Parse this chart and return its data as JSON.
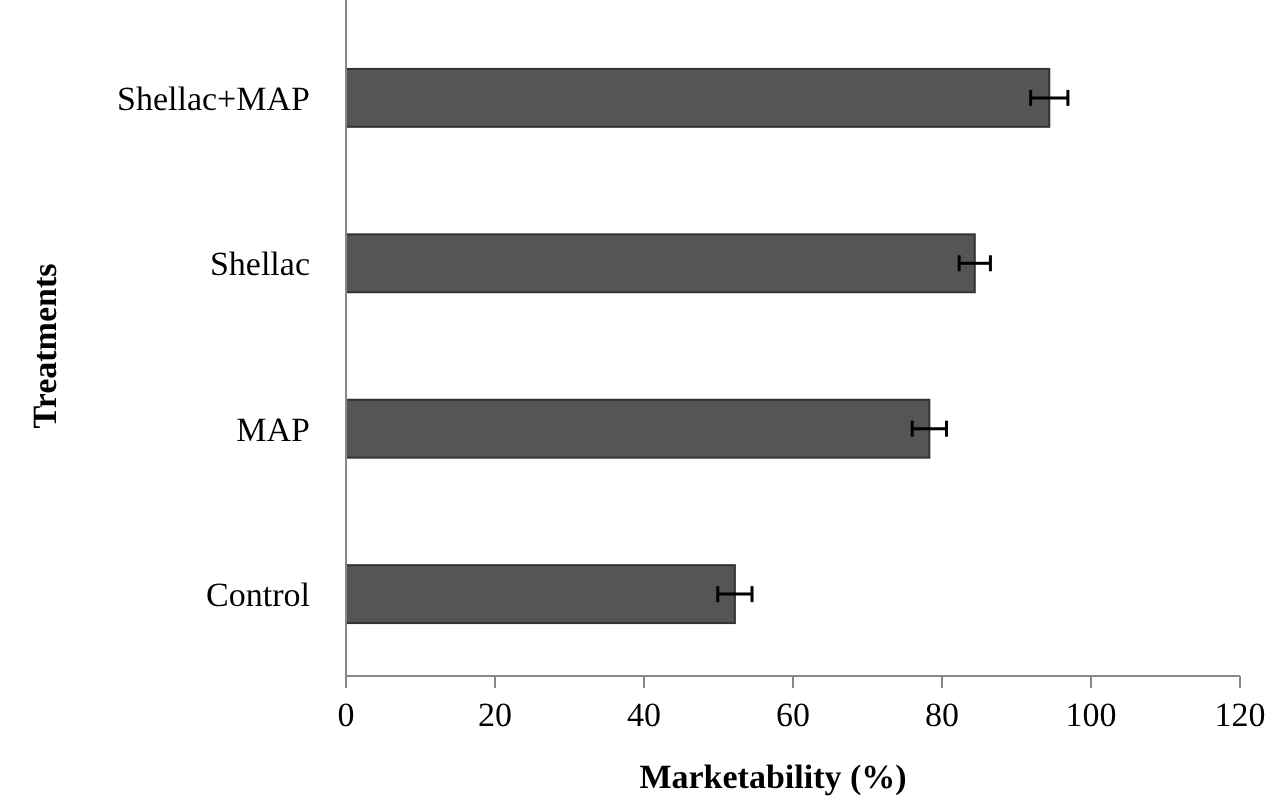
{
  "chart_data": {
    "type": "bar",
    "orientation": "horizontal",
    "xlabel": "Marketability (%)",
    "ylabel": "Treatments",
    "categories": [
      "Shellac+MAP",
      "Shellac",
      "MAP",
      "Control"
    ],
    "values": [
      94.4,
      84.4,
      78.3,
      52.2
    ],
    "errors": [
      2.5,
      2.1,
      2.3,
      2.3
    ],
    "color": "#555555",
    "xlim": [
      0,
      120
    ],
    "xticks": [
      0,
      20,
      40,
      60,
      80,
      100,
      120
    ],
    "grid": false
  }
}
